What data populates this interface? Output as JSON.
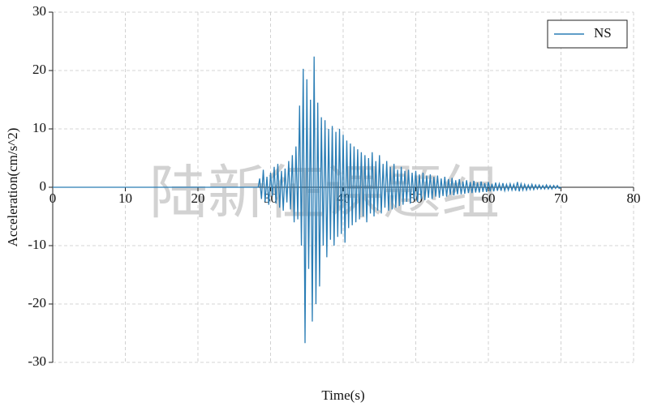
{
  "chart_data": {
    "type": "line",
    "xlabel": "Time(s)",
    "ylabel": "Acceleration(cm/s^2)",
    "watermark": "陆新征课题组",
    "xlim": [
      0,
      80
    ],
    "xticks": [
      0,
      10,
      20,
      30,
      40,
      50,
      60,
      70,
      80
    ],
    "ylim": [
      -30,
      30
    ],
    "yticks": [
      -30,
      -20,
      -10,
      0,
      10,
      20,
      30
    ],
    "grid": true,
    "legend": "upper right",
    "x": [
      0,
      28.3,
      28.5,
      28.75,
      29,
      29.25,
      29.5,
      29.75,
      30,
      30.25,
      30.5,
      30.75,
      31,
      31.25,
      31.5,
      31.75,
      32,
      32.25,
      32.5,
      32.75,
      33,
      33.25,
      33.5,
      33.75,
      34,
      34.25,
      34.5,
      34.75,
      35,
      35.25,
      35.5,
      35.75,
      36,
      36.25,
      36.5,
      36.75,
      37,
      37.25,
      37.5,
      37.75,
      38,
      38.25,
      38.5,
      38.75,
      39,
      39.25,
      39.5,
      39.75,
      40,
      40.25,
      40.5,
      40.75,
      41,
      41.25,
      41.5,
      41.75,
      42,
      42.25,
      42.5,
      42.75,
      43,
      43.25,
      43.5,
      43.75,
      44,
      44.25,
      44.5,
      44.75,
      45,
      45.25,
      45.5,
      45.75,
      46,
      46.25,
      46.5,
      46.75,
      47,
      47.25,
      47.5,
      47.75,
      48,
      48.25,
      48.5,
      48.75,
      49,
      49.25,
      49.5,
      49.75,
      50,
      50.25,
      50.5,
      50.75,
      51,
      51.25,
      51.5,
      51.75,
      52,
      52.25,
      52.5,
      52.75,
      53,
      53.25,
      53.5,
      53.75,
      54,
      54.25,
      54.5,
      54.75,
      55,
      55.25,
      55.5,
      55.75,
      56,
      56.25,
      56.5,
      56.75,
      57,
      57.25,
      57.5,
      57.75,
      58,
      58.25,
      58.5,
      58.75,
      59,
      59.25,
      59.5,
      59.75,
      60,
      60.25,
      60.5,
      60.75,
      61,
      61.25,
      61.5,
      61.75,
      62,
      62.25,
      62.5,
      62.75,
      63,
      63.25,
      63.5,
      63.75,
      64,
      64.25,
      64.5,
      64.75,
      65,
      65.25,
      65.5,
      65.75,
      66,
      66.25,
      66.5,
      66.75,
      67,
      67.25,
      67.5,
      67.75,
      68,
      68.25,
      68.5,
      68.75,
      69,
      69.25,
      69.5,
      69.75,
      70
    ],
    "series": [
      {
        "name": "NS",
        "color": "#2a7db5",
        "values": [
          0,
          0,
          1.5,
          -2.0,
          3.0,
          -2.5,
          1.8,
          -3.0,
          2.5,
          -1.5,
          3.5,
          -2.8,
          4.0,
          -3.5,
          2.8,
          -4.0,
          3.2,
          -2.6,
          4.5,
          -3.8,
          5.5,
          -6.0,
          7.0,
          -5.5,
          14.0,
          -10.0,
          20.3,
          -26.7,
          18.5,
          -14.0,
          15.0,
          -23.0,
          22.4,
          -20.0,
          14.5,
          -17.0,
          12.0,
          -10.0,
          11.5,
          -12.0,
          10.0,
          -9.0,
          10.5,
          -10.0,
          9.5,
          -8.5,
          10.0,
          -8.0,
          9.0,
          -9.5,
          8.0,
          -7.0,
          7.5,
          -6.5,
          7.0,
          -6.0,
          6.5,
          -5.5,
          6.0,
          -5.0,
          5.5,
          -6.0,
          5.0,
          -4.5,
          6.0,
          -5.0,
          4.5,
          -4.0,
          5.5,
          -4.5,
          4.0,
          -3.5,
          4.5,
          -4.0,
          3.5,
          -3.8,
          4.0,
          -3.5,
          3.0,
          -3.2,
          3.5,
          -3.0,
          2.8,
          -2.5,
          3.0,
          -2.8,
          2.5,
          -2.2,
          2.8,
          -2.5,
          2.2,
          -2.0,
          2.5,
          -2.2,
          2.0,
          -1.8,
          2.2,
          -2.0,
          1.8,
          -1.6,
          2.0,
          -1.8,
          1.5,
          -1.5,
          1.8,
          -1.6,
          1.4,
          -1.3,
          1.6,
          -1.4,
          1.2,
          -1.2,
          1.4,
          -1.2,
          1.0,
          -1.1,
          1.2,
          -1.0,
          0.9,
          -1.0,
          1.1,
          -0.9,
          0.8,
          -0.9,
          1.0,
          -0.8,
          0.7,
          -0.8,
          0.9,
          -0.7,
          0.6,
          -0.7,
          0.8,
          -0.6,
          0.6,
          -0.6,
          0.7,
          -0.6,
          0.5,
          -0.5,
          0.6,
          -0.5,
          0.5,
          -0.6,
          0.9,
          -0.7,
          0.6,
          -0.5,
          0.5,
          -0.5,
          0.4,
          -0.4,
          0.5,
          -0.4,
          0.4,
          -0.3,
          0.4,
          -0.3,
          0.3,
          -0.3,
          0.4,
          -0.3,
          0.3,
          -0.3,
          0.3,
          -0.2,
          0.3,
          -0.2,
          0
        ]
      }
    ]
  }
}
